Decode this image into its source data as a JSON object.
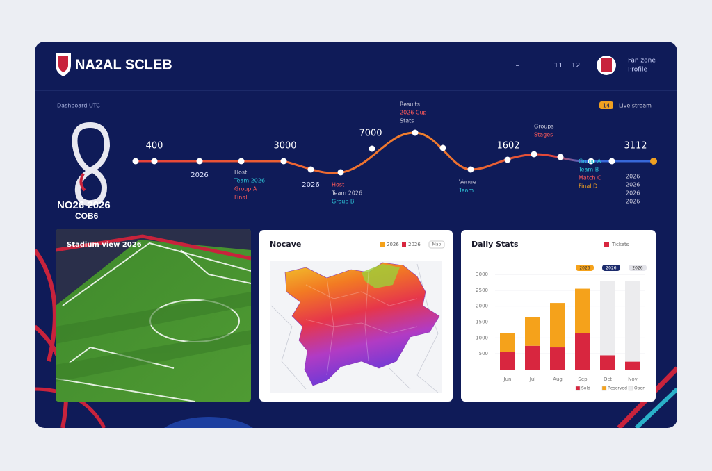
{
  "header": {
    "title": "NA2AL SCLEB",
    "nav": [
      "–",
      "11",
      "12"
    ],
    "account": [
      "Fan zone",
      "Profile"
    ]
  },
  "logo": {
    "line1": "NO26 2026",
    "line2": "COB6"
  },
  "timeline": {
    "caption": "Dashboard UTC",
    "top_labels": [
      "400",
      "3000",
      "7000",
      "1602",
      "3112"
    ],
    "low_labels": [
      "2026",
      "2026"
    ],
    "callout_top": [
      "Results",
      "2026 Cup",
      "Stats"
    ],
    "callout_right": [
      "Groups",
      "Stages"
    ],
    "badge": "14",
    "badge_text": "Live stream",
    "legend_a": [
      "Host",
      "Team 2026",
      "Group A",
      "Final"
    ],
    "legend_b": [
      "Host",
      "Team 2026",
      "Group B"
    ],
    "legend_c": [
      "Group A",
      "Team B",
      "Match C",
      "Final D"
    ],
    "legend_d": [
      "2026",
      "2026",
      "2026",
      "2026"
    ],
    "legend_e": [
      "Venue",
      "Team"
    ]
  },
  "photo_panel": {
    "caption": "Stadium view 2026"
  },
  "map_panel": {
    "title": "Nocave",
    "legend": [
      "2026",
      "2026",
      "Map"
    ]
  },
  "bar_panel": {
    "title": "Daily Stats",
    "legend": "Tickets",
    "pills": [
      "2026",
      "2026",
      "2026"
    ],
    "ylim": [
      0,
      3000
    ],
    "yticks": [
      500,
      1000,
      1500,
      2000,
      2500,
      3000
    ],
    "categories": [
      "Jun",
      "Jul",
      "Aug",
      "Sep",
      "Oct",
      "Nov"
    ],
    "series": [
      {
        "name": "Sold",
        "color": "#d8263f",
        "values": [
          550,
          750,
          700,
          1150,
          450,
          250
        ]
      },
      {
        "name": "Reserved",
        "color": "#f5a21b",
        "values": [
          600,
          900,
          1400,
          1400,
          null,
          null
        ]
      },
      {
        "name": "Open",
        "color": "#ececee",
        "values": [
          null,
          null,
          null,
          null,
          2350,
          2550
        ]
      }
    ]
  }
}
